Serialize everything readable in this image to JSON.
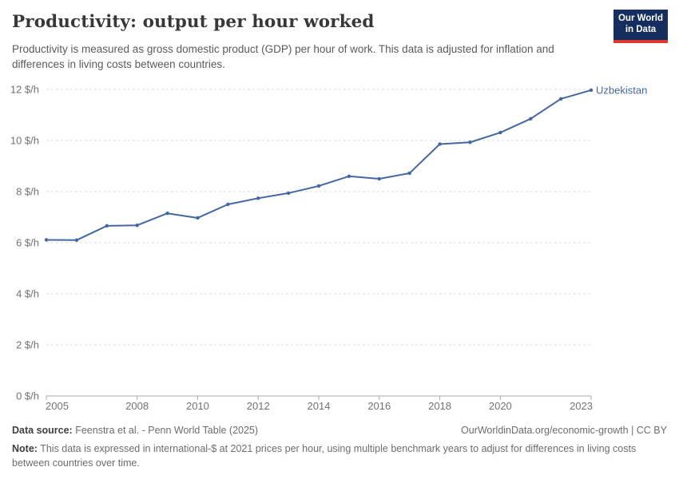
{
  "header": {
    "title": "Productivity: output per hour worked",
    "subtitle": "Productivity is measured as gross domestic product (GDP) per hour of work. This data is adjusted for inflation and differences in living costs between countries.",
    "logo": {
      "line1": "Our World",
      "line2": "in Data",
      "bg_color": "#152e5f",
      "accent_color": "#dc3a2e"
    }
  },
  "chart_data": {
    "type": "line",
    "title": "Productivity: output per hour worked",
    "xlabel": "",
    "ylabel": "",
    "unit_suffix": "$/h",
    "xlim": [
      2005,
      2023
    ],
    "ylim": [
      0,
      12
    ],
    "xticks": [
      2005,
      2008,
      2010,
      2012,
      2014,
      2016,
      2018,
      2020,
      2023
    ],
    "yticks": [
      0,
      2,
      4,
      6,
      8,
      10,
      12
    ],
    "grid": "horizontal-dashed",
    "legend_position": "end-of-line-label",
    "x": [
      2005,
      2006,
      2007,
      2008,
      2009,
      2010,
      2011,
      2012,
      2013,
      2014,
      2015,
      2016,
      2017,
      2018,
      2019,
      2020,
      2021,
      2022,
      2023
    ],
    "series": [
      {
        "name": "Uzbekistan",
        "color": "#4268a4",
        "values": [
          6.11,
          6.1,
          6.66,
          6.68,
          7.15,
          6.97,
          7.5,
          7.74,
          7.94,
          8.22,
          8.6,
          8.5,
          8.72,
          9.86,
          9.93,
          10.31,
          10.85,
          11.63,
          11.97
        ]
      }
    ],
    "colors": {
      "grid": "#dedede",
      "axis": "#a8a8a8",
      "tick_label": "#737373"
    }
  },
  "footer": {
    "datasource_label": "Data source:",
    "datasource_value": "Feenstra et al. - Penn World Table (2025)",
    "attribution": "OurWorldinData.org/economic-growth | CC BY",
    "note_label": "Note:",
    "note_value": "This data is expressed in international-$ at 2021 prices per hour, using multiple benchmark years to adjust for differences in living costs between countries over time."
  }
}
